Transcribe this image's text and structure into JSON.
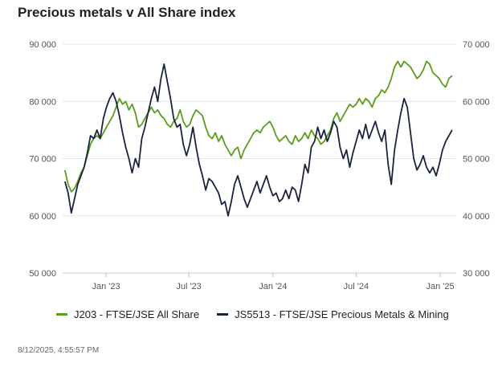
{
  "title": "Precious metals v All Share index",
  "timestamp": "8/12/2025, 4:55:57 PM",
  "chart_data": {
    "type": "line",
    "grid": true,
    "legend_position": "bottom",
    "x_ticks": [
      "Jan '23",
      "Jul '23",
      "Jan '24",
      "Jul '24",
      "Jan '25"
    ],
    "y_left": {
      "ylim": [
        50000,
        90000
      ],
      "ticks": [
        "50 000",
        "60 000",
        "70 000",
        "80 000",
        "90 000"
      ]
    },
    "y_right": {
      "ylim": [
        30000,
        70000
      ],
      "ticks": [
        "30 000",
        "40 000",
        "50 000",
        "60 000",
        "70 000"
      ]
    },
    "series": [
      {
        "name": "J203 - FTSE/JSE All Share",
        "axis": "left",
        "color": "#5a9e1c",
        "points": [
          [
            "2022-10-03",
            68000
          ],
          [
            "2022-10-10",
            65500
          ],
          [
            "2022-10-17",
            64200
          ],
          [
            "2022-10-24",
            64800
          ],
          [
            "2022-10-31",
            66000
          ],
          [
            "2022-11-07",
            67500
          ],
          [
            "2022-11-14",
            68500
          ],
          [
            "2022-11-21",
            70500
          ],
          [
            "2022-11-28",
            72500
          ],
          [
            "2022-12-05",
            73500
          ],
          [
            "2022-12-12",
            74000
          ],
          [
            "2022-12-19",
            73500
          ],
          [
            "2022-12-26",
            74500
          ],
          [
            "2023-01-02",
            75500
          ],
          [
            "2023-01-09",
            76500
          ],
          [
            "2023-01-16",
            77500
          ],
          [
            "2023-01-23",
            79000
          ],
          [
            "2023-01-30",
            80500
          ],
          [
            "2023-02-06",
            79500
          ],
          [
            "2023-02-13",
            80000
          ],
          [
            "2023-02-20",
            78500
          ],
          [
            "2023-02-27",
            79500
          ],
          [
            "2023-03-06",
            78000
          ],
          [
            "2023-03-13",
            75500
          ],
          [
            "2023-03-20",
            76000
          ],
          [
            "2023-03-27",
            77000
          ],
          [
            "2023-04-03",
            78000
          ],
          [
            "2023-04-10",
            79000
          ],
          [
            "2023-04-17",
            78000
          ],
          [
            "2023-04-24",
            78500
          ],
          [
            "2023-05-01",
            77500
          ],
          [
            "2023-05-08",
            77000
          ],
          [
            "2023-05-15",
            76000
          ],
          [
            "2023-05-22",
            75500
          ],
          [
            "2023-05-29",
            76500
          ],
          [
            "2023-06-05",
            77000
          ],
          [
            "2023-06-12",
            78500
          ],
          [
            "2023-06-19",
            76500
          ],
          [
            "2023-06-26",
            75500
          ],
          [
            "2023-07-03",
            76000
          ],
          [
            "2023-07-10",
            77500
          ],
          [
            "2023-07-17",
            78500
          ],
          [
            "2023-07-24",
            78000
          ],
          [
            "2023-07-31",
            77500
          ],
          [
            "2023-08-07",
            75500
          ],
          [
            "2023-08-14",
            74000
          ],
          [
            "2023-08-21",
            73500
          ],
          [
            "2023-08-28",
            74500
          ],
          [
            "2023-09-04",
            73000
          ],
          [
            "2023-09-11",
            74000
          ],
          [
            "2023-09-18",
            72500
          ],
          [
            "2023-09-25",
            71500
          ],
          [
            "2023-10-02",
            70500
          ],
          [
            "2023-10-09",
            71500
          ],
          [
            "2023-10-16",
            72000
          ],
          [
            "2023-10-23",
            70000
          ],
          [
            "2023-10-30",
            71500
          ],
          [
            "2023-11-06",
            72500
          ],
          [
            "2023-11-13",
            73500
          ],
          [
            "2023-11-20",
            74500
          ],
          [
            "2023-11-27",
            75000
          ],
          [
            "2023-12-04",
            74500
          ],
          [
            "2023-12-11",
            75500
          ],
          [
            "2023-12-18",
            76000
          ],
          [
            "2023-12-25",
            76500
          ],
          [
            "2024-01-01",
            75500
          ],
          [
            "2024-01-08",
            74000
          ],
          [
            "2024-01-15",
            73000
          ],
          [
            "2024-01-22",
            73500
          ],
          [
            "2024-01-29",
            74000
          ],
          [
            "2024-02-05",
            73000
          ],
          [
            "2024-02-12",
            72500
          ],
          [
            "2024-02-19",
            74000
          ],
          [
            "2024-02-26",
            73000
          ],
          [
            "2024-03-04",
            73500
          ],
          [
            "2024-03-11",
            74500
          ],
          [
            "2024-03-18",
            73500
          ],
          [
            "2024-03-25",
            75000
          ],
          [
            "2024-04-01",
            74000
          ],
          [
            "2024-04-08",
            73500
          ],
          [
            "2024-04-15",
            72500
          ],
          [
            "2024-04-22",
            73000
          ],
          [
            "2024-04-29",
            74000
          ],
          [
            "2024-05-06",
            75000
          ],
          [
            "2024-05-13",
            77000
          ],
          [
            "2024-05-20",
            78000
          ],
          [
            "2024-05-27",
            76500
          ],
          [
            "2024-06-03",
            77500
          ],
          [
            "2024-06-10",
            78500
          ],
          [
            "2024-06-17",
            79500
          ],
          [
            "2024-06-24",
            79000
          ],
          [
            "2024-07-01",
            79500
          ],
          [
            "2024-07-08",
            80500
          ],
          [
            "2024-07-15",
            79500
          ],
          [
            "2024-07-22",
            80500
          ],
          [
            "2024-07-29",
            80000
          ],
          [
            "2024-08-05",
            79000
          ],
          [
            "2024-08-12",
            80500
          ],
          [
            "2024-08-19",
            81000
          ],
          [
            "2024-08-26",
            82000
          ],
          [
            "2024-09-02",
            81500
          ],
          [
            "2024-09-09",
            82500
          ],
          [
            "2024-09-16",
            84000
          ],
          [
            "2024-09-23",
            86000
          ],
          [
            "2024-09-30",
            87000
          ],
          [
            "2024-10-07",
            86000
          ],
          [
            "2024-10-14",
            87000
          ],
          [
            "2024-10-21",
            86500
          ],
          [
            "2024-10-28",
            86000
          ],
          [
            "2024-11-04",
            85000
          ],
          [
            "2024-11-11",
            84000
          ],
          [
            "2024-11-18",
            84500
          ],
          [
            "2024-11-25",
            85500
          ],
          [
            "2024-12-02",
            87000
          ],
          [
            "2024-12-09",
            86500
          ],
          [
            "2024-12-16",
            85000
          ],
          [
            "2024-12-23",
            84500
          ],
          [
            "2024-12-30",
            84000
          ],
          [
            "2025-01-06",
            83000
          ],
          [
            "2025-01-13",
            82500
          ],
          [
            "2025-01-20",
            84000
          ],
          [
            "2025-01-27",
            84500
          ]
        ]
      },
      {
        "name": "JS5513 - FTSE/JSE Precious Metals & Mining",
        "axis": "right",
        "color": "#1a2340",
        "points": [
          [
            "2022-10-03",
            46000
          ],
          [
            "2022-10-10",
            44000
          ],
          [
            "2022-10-17",
            40500
          ],
          [
            "2022-10-24",
            43000
          ],
          [
            "2022-10-31",
            45500
          ],
          [
            "2022-11-07",
            47000
          ],
          [
            "2022-11-14",
            48500
          ],
          [
            "2022-11-21",
            51000
          ],
          [
            "2022-11-28",
            54000
          ],
          [
            "2022-12-05",
            53500
          ],
          [
            "2022-12-12",
            55000
          ],
          [
            "2022-12-19",
            53500
          ],
          [
            "2022-12-26",
            57000
          ],
          [
            "2023-01-02",
            59000
          ],
          [
            "2023-01-09",
            60500
          ],
          [
            "2023-01-16",
            61500
          ],
          [
            "2023-01-23",
            60000
          ],
          [
            "2023-01-30",
            57500
          ],
          [
            "2023-02-06",
            54500
          ],
          [
            "2023-02-13",
            52000
          ],
          [
            "2023-02-20",
            50000
          ],
          [
            "2023-02-27",
            47500
          ],
          [
            "2023-03-06",
            50000
          ],
          [
            "2023-03-13",
            48500
          ],
          [
            "2023-03-20",
            53500
          ],
          [
            "2023-03-27",
            55500
          ],
          [
            "2023-04-03",
            58000
          ],
          [
            "2023-04-10",
            60500
          ],
          [
            "2023-04-17",
            62500
          ],
          [
            "2023-04-24",
            60000
          ],
          [
            "2023-05-01",
            64000
          ],
          [
            "2023-05-08",
            66500
          ],
          [
            "2023-05-15",
            63500
          ],
          [
            "2023-05-22",
            60500
          ],
          [
            "2023-05-29",
            57000
          ],
          [
            "2023-06-05",
            55500
          ],
          [
            "2023-06-12",
            56000
          ],
          [
            "2023-06-19",
            52500
          ],
          [
            "2023-06-26",
            50500
          ],
          [
            "2023-07-03",
            52500
          ],
          [
            "2023-07-10",
            55500
          ],
          [
            "2023-07-17",
            52000
          ],
          [
            "2023-07-24",
            49000
          ],
          [
            "2023-07-31",
            47000
          ],
          [
            "2023-08-07",
            44500
          ],
          [
            "2023-08-14",
            46500
          ],
          [
            "2023-08-21",
            46000
          ],
          [
            "2023-08-28",
            45000
          ],
          [
            "2023-09-04",
            44000
          ],
          [
            "2023-09-11",
            42000
          ],
          [
            "2023-09-18",
            42500
          ],
          [
            "2023-09-25",
            40000
          ],
          [
            "2023-10-02",
            42500
          ],
          [
            "2023-10-09",
            45500
          ],
          [
            "2023-10-16",
            47000
          ],
          [
            "2023-10-23",
            45000
          ],
          [
            "2023-10-30",
            43000
          ],
          [
            "2023-11-06",
            41500
          ],
          [
            "2023-11-13",
            43000
          ],
          [
            "2023-11-20",
            44500
          ],
          [
            "2023-11-27",
            46000
          ],
          [
            "2023-12-04",
            44000
          ],
          [
            "2023-12-11",
            45500
          ],
          [
            "2023-12-18",
            47000
          ],
          [
            "2023-12-25",
            45000
          ],
          [
            "2024-01-01",
            43500
          ],
          [
            "2024-01-08",
            44000
          ],
          [
            "2024-01-15",
            42500
          ],
          [
            "2024-01-22",
            43000
          ],
          [
            "2024-01-29",
            44500
          ],
          [
            "2024-02-05",
            43000
          ],
          [
            "2024-02-12",
            45000
          ],
          [
            "2024-02-19",
            44500
          ],
          [
            "2024-02-26",
            42500
          ],
          [
            "2024-03-04",
            45500
          ],
          [
            "2024-03-11",
            49000
          ],
          [
            "2024-03-18",
            47500
          ],
          [
            "2024-03-25",
            52000
          ],
          [
            "2024-04-01",
            53000
          ],
          [
            "2024-04-08",
            55500
          ],
          [
            "2024-04-15",
            53500
          ],
          [
            "2024-04-22",
            55000
          ],
          [
            "2024-04-29",
            53000
          ],
          [
            "2024-05-06",
            54500
          ],
          [
            "2024-05-13",
            56500
          ],
          [
            "2024-05-20",
            55500
          ],
          [
            "2024-05-27",
            52000
          ],
          [
            "2024-06-03",
            50000
          ],
          [
            "2024-06-10",
            51500
          ],
          [
            "2024-06-17",
            48500
          ],
          [
            "2024-06-24",
            51000
          ],
          [
            "2024-07-01",
            53000
          ],
          [
            "2024-07-08",
            55000
          ],
          [
            "2024-07-15",
            53500
          ],
          [
            "2024-07-22",
            56000
          ],
          [
            "2024-07-29",
            53500
          ],
          [
            "2024-08-05",
            55000
          ],
          [
            "2024-08-12",
            56500
          ],
          [
            "2024-08-19",
            54500
          ],
          [
            "2024-08-26",
            53000
          ],
          [
            "2024-09-02",
            55000
          ],
          [
            "2024-09-09",
            49000
          ],
          [
            "2024-09-16",
            45500
          ],
          [
            "2024-09-23",
            51500
          ],
          [
            "2024-09-30",
            55000
          ],
          [
            "2024-10-07",
            58000
          ],
          [
            "2024-10-14",
            60500
          ],
          [
            "2024-10-21",
            59000
          ],
          [
            "2024-10-28",
            54500
          ],
          [
            "2024-11-04",
            50000
          ],
          [
            "2024-11-11",
            48000
          ],
          [
            "2024-11-18",
            49000
          ],
          [
            "2024-11-25",
            50500
          ],
          [
            "2024-12-02",
            48500
          ],
          [
            "2024-12-09",
            47500
          ],
          [
            "2024-12-16",
            48500
          ],
          [
            "2024-12-23",
            47000
          ],
          [
            "2024-12-30",
            49000
          ],
          [
            "2025-01-06",
            51500
          ],
          [
            "2025-01-13",
            53000
          ],
          [
            "2025-01-20",
            54000
          ],
          [
            "2025-01-27",
            55000
          ]
        ]
      }
    ]
  }
}
